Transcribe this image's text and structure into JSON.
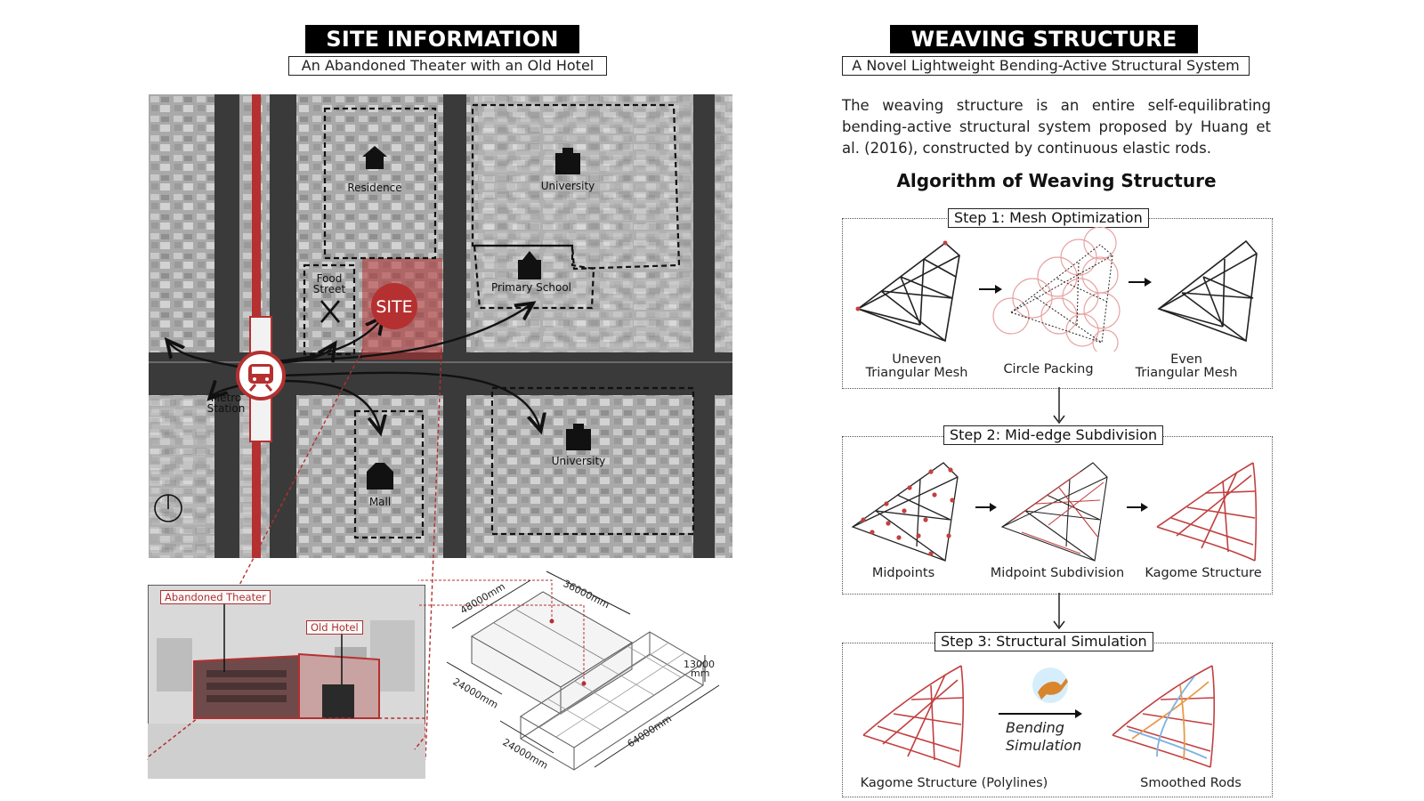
{
  "left": {
    "title": "SITE INFORMATION",
    "subtitle": "An Abandoned Theater with an Old Hotel",
    "map": {
      "labels": {
        "residence": "Residence",
        "university_top": "University",
        "food_street": [
          "Food",
          "Street"
        ],
        "site": "SITE",
        "primary_school": "Primary School",
        "metro": [
          "Metro",
          "Station"
        ],
        "university_bottom": "University",
        "mall": "Mall"
      }
    },
    "photo": {
      "tag_theater": "Abandoned Theater",
      "tag_hotel": "Old Hotel"
    },
    "axo": {
      "dims": {
        "d48000": "48000mm",
        "d36000": "36000mm",
        "d24000a": "24000mm",
        "d13000a": "13000",
        "d13000b": "mm",
        "d24000b": "24000mm",
        "d64000": "64000mm"
      }
    }
  },
  "right": {
    "title": "WEAVING STRUCTURE",
    "subtitle": "A Novel Lightweight Bending-Active Structural System",
    "paragraph": "The weaving structure is an entire self-equilibrating bending-active structural system proposed by Huang et al. (2016), constructed by continuous elastic rods.",
    "algorithm_title": "Algorithm of Weaving Structure",
    "steps": [
      {
        "label": "Step 1: Mesh Optimization",
        "captions": [
          [
            "Uneven",
            "Triangular Mesh"
          ],
          [
            "Circle Packing"
          ],
          [
            "Even",
            "Triangular Mesh"
          ]
        ]
      },
      {
        "label": "Step 2: Mid-edge Subdivision",
        "captions": [
          [
            "Midpoints"
          ],
          [
            "Midpoint Subdivision"
          ],
          [
            "Kagome Structure"
          ]
        ]
      },
      {
        "label": "Step 3: Structural Simulation",
        "captions": [
          [
            "Kagome Structure (Polylines)"
          ],
          [
            "Smoothed Rods"
          ]
        ],
        "simulation": [
          "Bending",
          "Simulation"
        ]
      }
    ]
  },
  "colors": {
    "accent_red": "#b53030",
    "mesh_dark": "#222222",
    "kagome_red": "#c24040",
    "rod_orange": "#e69a4a",
    "rod_blue": "#7fb3e0"
  }
}
